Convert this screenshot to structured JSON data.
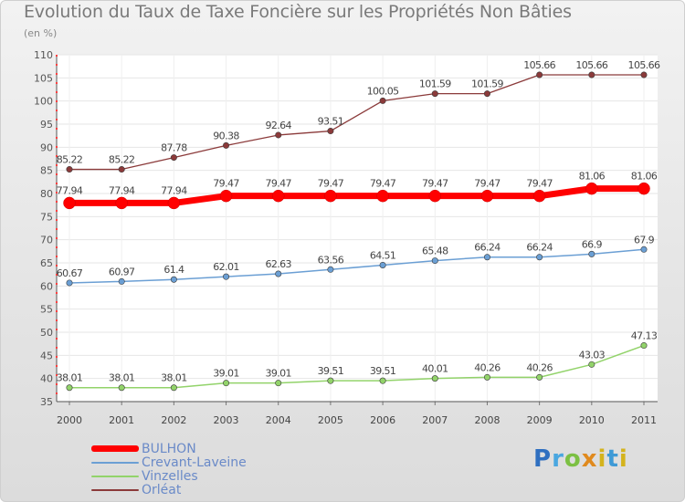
{
  "chart_data": {
    "type": "line",
    "title": "Evolution du Taux de Taxe Foncière sur les Propriétés Non Bâties",
    "ylabel": "(en %)",
    "xlabel": "",
    "ylim": [
      35,
      110
    ],
    "yticks": [
      35,
      40,
      45,
      50,
      55,
      60,
      65,
      70,
      75,
      80,
      85,
      90,
      95,
      100,
      105,
      110
    ],
    "categories": [
      "2000",
      "2001",
      "2002",
      "2003",
      "2004",
      "2005",
      "2006",
      "2007",
      "2008",
      "2009",
      "2010",
      "2011"
    ],
    "series": [
      {
        "name": "BULHON",
        "color": "#ff0000",
        "values": [
          77.94,
          77.94,
          77.94,
          79.47,
          79.47,
          79.47,
          79.47,
          79.47,
          79.47,
          79.47,
          81.06,
          81.06
        ],
        "labels": [
          "77.94",
          "77.94",
          "77.94",
          "79.47",
          "79.47",
          "79.47",
          "79.47",
          "79.47",
          "79.47",
          "79.47",
          "81.06",
          "81.06"
        ]
      },
      {
        "name": "Crevant-Laveine",
        "color": "#6b9fd4",
        "values": [
          60.67,
          60.97,
          61.4,
          62.01,
          62.63,
          63.56,
          64.51,
          65.48,
          66.24,
          66.24,
          66.9,
          67.9
        ],
        "labels": [
          "60.67",
          "60.97",
          "61.4",
          "62.01",
          "62.63",
          "63.56",
          "64.51",
          "65.48",
          "66.24",
          "66.24",
          "66.9",
          "67.9"
        ]
      },
      {
        "name": "Vinzelles",
        "color": "#92d36a",
        "values": [
          38.01,
          38.01,
          38.01,
          39.01,
          39.01,
          39.51,
          39.51,
          40.01,
          40.26,
          40.26,
          43.03,
          47.13
        ],
        "labels": [
          "38.01",
          "38.01",
          "38.01",
          "39.01",
          "39.01",
          "39.51",
          "39.51",
          "40.01",
          "40.26",
          "40.26",
          "43.03",
          "47.13"
        ]
      },
      {
        "name": "Orléat",
        "color": "#8b3a3a",
        "values": [
          85.22,
          85.22,
          87.78,
          90.38,
          92.64,
          93.51,
          100.05,
          101.59,
          101.59,
          105.66,
          105.66,
          105.66
        ],
        "labels": [
          "85.22",
          "85.22",
          "87.78",
          "90.38",
          "92.64",
          "93.51",
          "100.05",
          "101.59",
          "101.59",
          "105.66",
          "105.66",
          "105.66"
        ]
      }
    ],
    "legend_position": "bottom-left",
    "grid": true
  },
  "logo": {
    "letters": [
      "P",
      "r",
      "o",
      "x",
      "i",
      "t",
      "i"
    ]
  }
}
